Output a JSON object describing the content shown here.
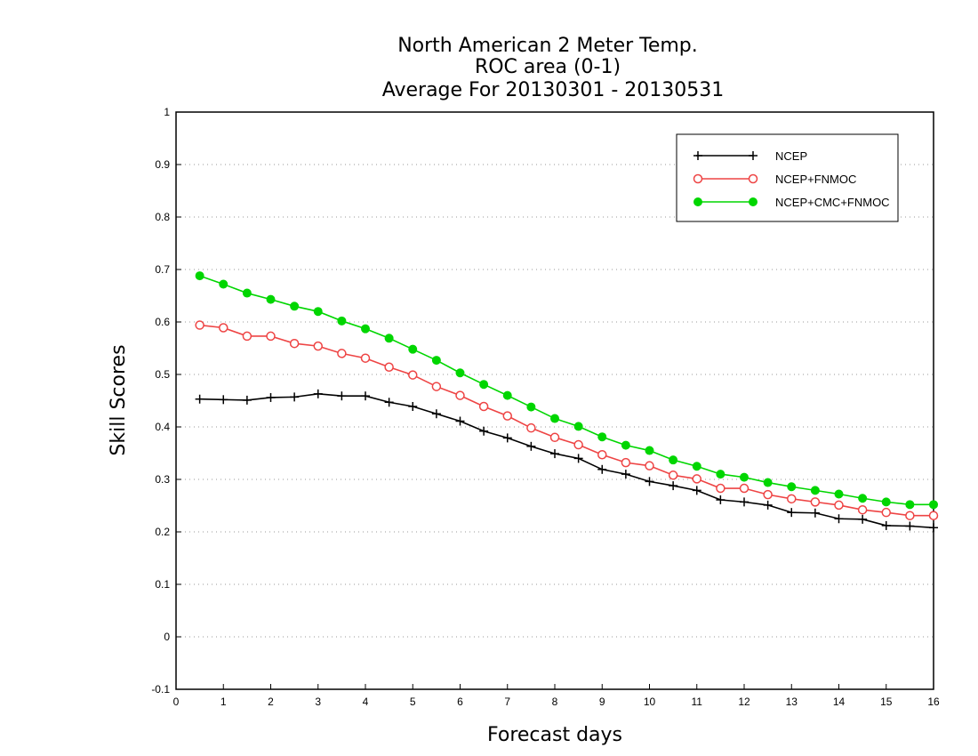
{
  "chart_data": {
    "type": "line",
    "title_lines": [
      "North American 2 Meter Temp.",
      "ROC area (0-1)",
      "Average For 20130301 - 20130531"
    ],
    "xlabel": "Forecast days",
    "ylabel": "Skill Scores",
    "xlim": [
      0,
      16
    ],
    "ylim": [
      -0.1,
      1
    ],
    "x_ticks": [
      0,
      1,
      2,
      3,
      4,
      5,
      6,
      7,
      8,
      9,
      10,
      11,
      12,
      13,
      14,
      15,
      16
    ],
    "y_ticks": [
      -0.1,
      0,
      0.1,
      0.2,
      0.3,
      0.4,
      0.5,
      0.6,
      0.7,
      0.8,
      0.9,
      1
    ],
    "y_tick_labels": [
      "-0.1",
      "0",
      "0.1",
      "0.2",
      "0.3",
      "0.4",
      "0.5",
      "0.6",
      "0.7",
      "0.8",
      "0.9",
      "1"
    ],
    "grid": "horizontal dotted",
    "legend_position": "top-right",
    "x": [
      0.5,
      1,
      1.5,
      2,
      2.5,
      3,
      3.5,
      4,
      4.5,
      5,
      5.5,
      6,
      6.5,
      7,
      7.5,
      8,
      8.5,
      9,
      9.5,
      10,
      10.5,
      11,
      11.5,
      12,
      12.5,
      13,
      13.5,
      14,
      14.5,
      15,
      15.5,
      16
    ],
    "series": [
      {
        "name": "NCEP",
        "color": "#000000",
        "marker": "plus",
        "values": [
          0.453,
          0.452,
          0.451,
          0.456,
          0.457,
          0.463,
          0.459,
          0.459,
          0.447,
          0.439,
          0.425,
          0.411,
          0.392,
          0.379,
          0.363,
          0.349,
          0.34,
          0.319,
          0.31,
          0.296,
          0.288,
          0.279,
          0.261,
          0.257,
          0.251,
          0.237,
          0.236,
          0.225,
          0.224,
          0.212,
          0.211,
          0.208
        ]
      },
      {
        "name": "NCEP+FNMOC",
        "color": "#ee4444",
        "marker": "open-circle",
        "values": [
          0.594,
          0.589,
          0.573,
          0.573,
          0.559,
          0.554,
          0.54,
          0.531,
          0.514,
          0.499,
          0.477,
          0.46,
          0.439,
          0.421,
          0.398,
          0.38,
          0.366,
          0.347,
          0.332,
          0.326,
          0.308,
          0.301,
          0.283,
          0.283,
          0.271,
          0.263,
          0.257,
          0.251,
          0.242,
          0.237,
          0.231,
          0.231
        ]
      },
      {
        "name": "NCEP+CMC+FNMOC",
        "color": "#00d600",
        "marker": "filled-circle",
        "values": [
          0.688,
          0.672,
          0.655,
          0.643,
          0.63,
          0.62,
          0.602,
          0.587,
          0.569,
          0.548,
          0.527,
          0.503,
          0.481,
          0.46,
          0.438,
          0.416,
          0.401,
          0.381,
          0.365,
          0.355,
          0.337,
          0.325,
          0.31,
          0.304,
          0.294,
          0.286,
          0.279,
          0.272,
          0.264,
          0.257,
          0.252,
          0.252
        ]
      }
    ]
  }
}
